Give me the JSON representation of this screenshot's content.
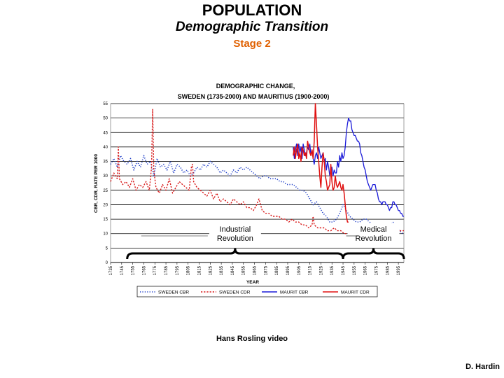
{
  "slide": {
    "title": "POPULATION",
    "subtitle": "Demographic Transition",
    "stage": "Stage 2",
    "credit": "Hans Rosling video",
    "author": "D. Hardin"
  },
  "colors": {
    "sweden_cbr": "#1f3fc8",
    "sweden_cdr": "#d81c1c",
    "maurit_cbr": "#1a1ad8",
    "maurit_cdr": "#e01010",
    "stage": "#e06000"
  },
  "chart_data": {
    "type": "line",
    "title": [
      "DEMOGRAPHIC CHANGE,",
      "SWEDEN (1735-2000) AND MAURITIUS (1900-2000)"
    ],
    "xlabel": "YEAR",
    "ylabel": "CBR, CDR, RATE PER 1000",
    "xlim": [
      1735,
      2000
    ],
    "ylim": [
      0,
      55
    ],
    "yticks": [
      0,
      5,
      10,
      15,
      20,
      25,
      30,
      35,
      40,
      45,
      50,
      55
    ],
    "xticks": [
      1735,
      1745,
      1755,
      1765,
      1775,
      1785,
      1795,
      1805,
      1815,
      1825,
      1835,
      1845,
      1855,
      1865,
      1875,
      1885,
      1895,
      1905,
      1915,
      1925,
      1935,
      1945,
      1955,
      1965,
      1975,
      1985,
      1995
    ],
    "grid": "horizontal",
    "legend_position": "bottom",
    "series": [
      {
        "name": "SWEDEN CBR",
        "style": "dotted",
        "x": [
          1735,
          1738,
          1741,
          1744,
          1747,
          1750,
          1753,
          1756,
          1759,
          1762,
          1765,
          1768,
          1771,
          1774,
          1777,
          1780,
          1783,
          1786,
          1789,
          1792,
          1795,
          1798,
          1801,
          1804,
          1807,
          1810,
          1813,
          1816,
          1819,
          1822,
          1825,
          1828,
          1831,
          1834,
          1837,
          1840,
          1843,
          1846,
          1849,
          1852,
          1855,
          1858,
          1861,
          1864,
          1867,
          1870,
          1873,
          1876,
          1879,
          1882,
          1885,
          1888,
          1891,
          1894,
          1897,
          1900,
          1903,
          1906,
          1909,
          1912,
          1915,
          1918,
          1921,
          1924,
          1927,
          1930,
          1933,
          1936,
          1939,
          1942,
          1945,
          1948,
          1951,
          1954,
          1957,
          1960,
          1963,
          1966,
          1969,
          1972,
          1975,
          1978,
          1981,
          1984,
          1987,
          1990,
          1993,
          1996,
          1999
        ],
        "values": [
          34,
          36,
          33,
          37,
          35,
          34,
          36,
          32,
          35,
          33,
          37,
          34,
          35,
          30,
          36,
          33,
          34,
          32,
          35,
          31,
          34,
          33,
          31,
          32,
          30,
          31,
          33,
          32,
          34,
          33,
          35,
          34,
          33,
          31,
          32,
          31,
          30,
          32,
          31,
          33,
          32,
          33,
          32,
          31,
          30,
          29,
          30,
          30,
          29,
          29,
          29,
          28,
          28,
          27,
          27,
          27,
          26,
          25,
          25,
          24,
          22,
          20,
          21,
          19,
          17,
          16,
          14,
          14,
          15,
          17,
          20,
          18,
          16,
          15,
          14,
          14,
          15,
          15,
          14,
          13,
          12,
          11,
          11,
          11,
          12,
          14,
          13,
          11,
          10
        ]
      },
      {
        "name": "SWEDEN CDR",
        "style": "dashed",
        "x": [
          1735,
          1738,
          1741,
          1742,
          1743,
          1746,
          1749,
          1752,
          1755,
          1758,
          1761,
          1764,
          1767,
          1770,
          1772,
          1773,
          1774,
          1776,
          1779,
          1782,
          1785,
          1788,
          1791,
          1794,
          1797,
          1800,
          1803,
          1806,
          1808,
          1809,
          1810,
          1813,
          1816,
          1819,
          1822,
          1825,
          1828,
          1831,
          1834,
          1837,
          1840,
          1843,
          1846,
          1849,
          1852,
          1855,
          1858,
          1861,
          1864,
          1867,
          1869,
          1872,
          1875,
          1878,
          1881,
          1884,
          1887,
          1890,
          1893,
          1896,
          1899,
          1902,
          1905,
          1908,
          1911,
          1914,
          1917,
          1918,
          1919,
          1922,
          1925,
          1928,
          1931,
          1934,
          1937,
          1940,
          1943,
          1946,
          1949,
          1952,
          1955,
          1958,
          1961,
          1964,
          1967,
          1970,
          1973,
          1976,
          1979,
          1982,
          1985,
          1988,
          1991,
          1994,
          1997,
          2000
        ],
        "values": [
          28,
          31,
          29,
          40,
          29,
          27,
          28,
          26,
          29,
          25,
          27,
          26,
          28,
          25,
          33,
          53,
          32,
          26,
          24,
          27,
          25,
          29,
          24,
          26,
          28,
          27,
          26,
          25,
          33,
          34,
          28,
          26,
          25,
          24,
          23,
          25,
          22,
          24,
          21,
          22,
          21,
          20,
          22,
          21,
          20,
          21,
          19,
          19,
          18,
          20,
          22,
          18,
          17,
          17,
          16,
          16,
          16,
          15,
          15,
          14,
          15,
          14,
          14,
          13,
          13,
          12,
          13,
          16,
          13,
          12,
          12,
          12,
          11,
          11,
          12,
          11,
          11,
          10,
          10,
          10,
          10,
          10,
          10,
          10,
          10,
          10,
          10,
          11,
          11,
          11,
          11,
          11,
          11,
          11,
          11,
          11
        ]
      },
      {
        "name": "MAURIT CBR",
        "style": "solid",
        "x": [
          1900,
          1901,
          1902,
          1903,
          1904,
          1905,
          1906,
          1907,
          1908,
          1909,
          1910,
          1911,
          1912,
          1913,
          1914,
          1915,
          1916,
          1917,
          1918,
          1919,
          1920,
          1921,
          1922,
          1923,
          1924,
          1925,
          1926,
          1927,
          1928,
          1929,
          1930,
          1931,
          1932,
          1933,
          1934,
          1935,
          1936,
          1937,
          1938,
          1939,
          1940,
          1941,
          1942,
          1943,
          1944,
          1945,
          1946,
          1947,
          1948,
          1949,
          1950,
          1951,
          1952,
          1953,
          1954,
          1955,
          1956,
          1957,
          1958,
          1959,
          1960,
          1961,
          1962,
          1963,
          1964,
          1965,
          1966,
          1967,
          1968,
          1969,
          1970,
          1971,
          1972,
          1973,
          1974,
          1975,
          1976,
          1977,
          1978,
          1979,
          1980,
          1981,
          1982,
          1983,
          1984,
          1985,
          1986,
          1987,
          1988,
          1989,
          1990,
          1991,
          1992,
          1993,
          1994,
          1995,
          1996,
          1997,
          1998,
          1999,
          2000
        ],
        "values": [
          40,
          36,
          39,
          41,
          37,
          41,
          38,
          40,
          36,
          41,
          39,
          37,
          38,
          40,
          39,
          41,
          37,
          39,
          36,
          34,
          37,
          38,
          36,
          40,
          38,
          36,
          37,
          38,
          35,
          36,
          32,
          35,
          33,
          30,
          31,
          33,
          30,
          32,
          31,
          31,
          35,
          33,
          37,
          35,
          38,
          36,
          37,
          40,
          45,
          48,
          50,
          49,
          49,
          46,
          45,
          44,
          44,
          43,
          42,
          42,
          41,
          38,
          37,
          35,
          33,
          32,
          30,
          28,
          27,
          26,
          25,
          26,
          27,
          27,
          27,
          25,
          24,
          22,
          21,
          21,
          20,
          21,
          21,
          21,
          20,
          20,
          19,
          18,
          19,
          19,
          21,
          21,
          20,
          20,
          19,
          18,
          18,
          17,
          17,
          16,
          16
        ]
      },
      {
        "name": "MAURIT CDR",
        "style": "solid",
        "x": [
          1900,
          1901,
          1902,
          1903,
          1904,
          1905,
          1906,
          1907,
          1908,
          1909,
          1910,
          1911,
          1912,
          1913,
          1914,
          1915,
          1916,
          1917,
          1918,
          1919,
          1920,
          1921,
          1922,
          1923,
          1924,
          1925,
          1926,
          1927,
          1928,
          1929,
          1930,
          1931,
          1932,
          1933,
          1934,
          1935,
          1936,
          1937,
          1938,
          1939,
          1940,
          1941,
          1942,
          1943,
          1944,
          1945,
          1946,
          1947,
          1948,
          1949,
          1950
        ],
        "values": [
          37,
          40,
          36,
          39,
          41,
          36,
          38,
          35,
          40,
          39,
          37,
          38,
          36,
          42,
          40,
          38,
          37,
          39,
          36,
          42,
          55,
          48,
          40,
          35,
          30,
          26,
          33,
          38,
          35,
          30,
          28,
          25,
          26,
          27,
          34,
          28,
          25,
          26,
          30,
          27,
          26,
          27,
          28,
          26,
          25,
          27,
          24,
          20,
          16,
          14,
          14
        ]
      }
    ],
    "annotations": [
      {
        "text": [
          "Industrial",
          "Revolution"
        ],
        "range": [
          1750,
          1945
        ]
      },
      {
        "text": [
          "Medical",
          "Revolution"
        ],
        "range": [
          1945,
          2000
        ]
      }
    ]
  }
}
